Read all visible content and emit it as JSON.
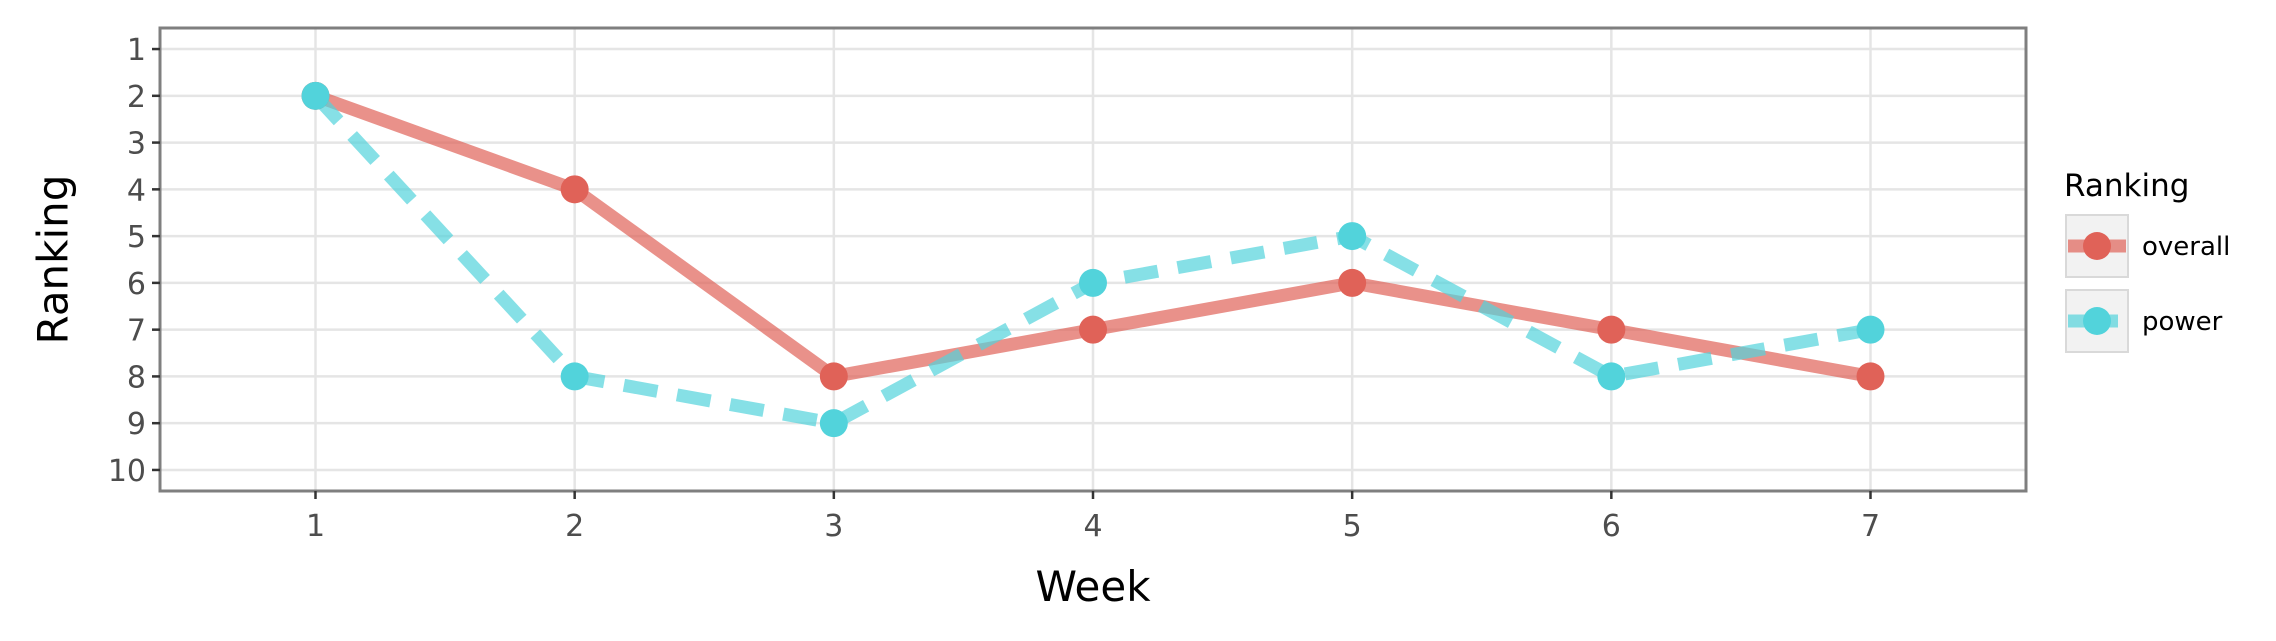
{
  "chart_data": {
    "type": "line",
    "xlabel": "Week",
    "ylabel": "Ranking",
    "x": [
      1,
      2,
      3,
      4,
      5,
      6,
      7
    ],
    "xlim": [
      0.4,
      7.6
    ],
    "ylim": [
      10.45,
      0.55
    ],
    "y_reversed": true,
    "xticks": [
      1,
      2,
      3,
      4,
      5,
      6,
      7
    ],
    "yticks": [
      1,
      2,
      3,
      4,
      5,
      6,
      7,
      8,
      9,
      10
    ],
    "grid": true,
    "legend": {
      "title": "Ranking",
      "placement": "right"
    },
    "series": [
      {
        "name": "overall",
        "values": [
          2,
          4,
          8,
          7,
          6,
          7,
          8
        ],
        "color": "#E06258",
        "line_style": "solid"
      },
      {
        "name": "power",
        "values": [
          2,
          8,
          9,
          6,
          5,
          8,
          7
        ],
        "color": "#52D3DB",
        "line_style": "dashed"
      }
    ]
  }
}
